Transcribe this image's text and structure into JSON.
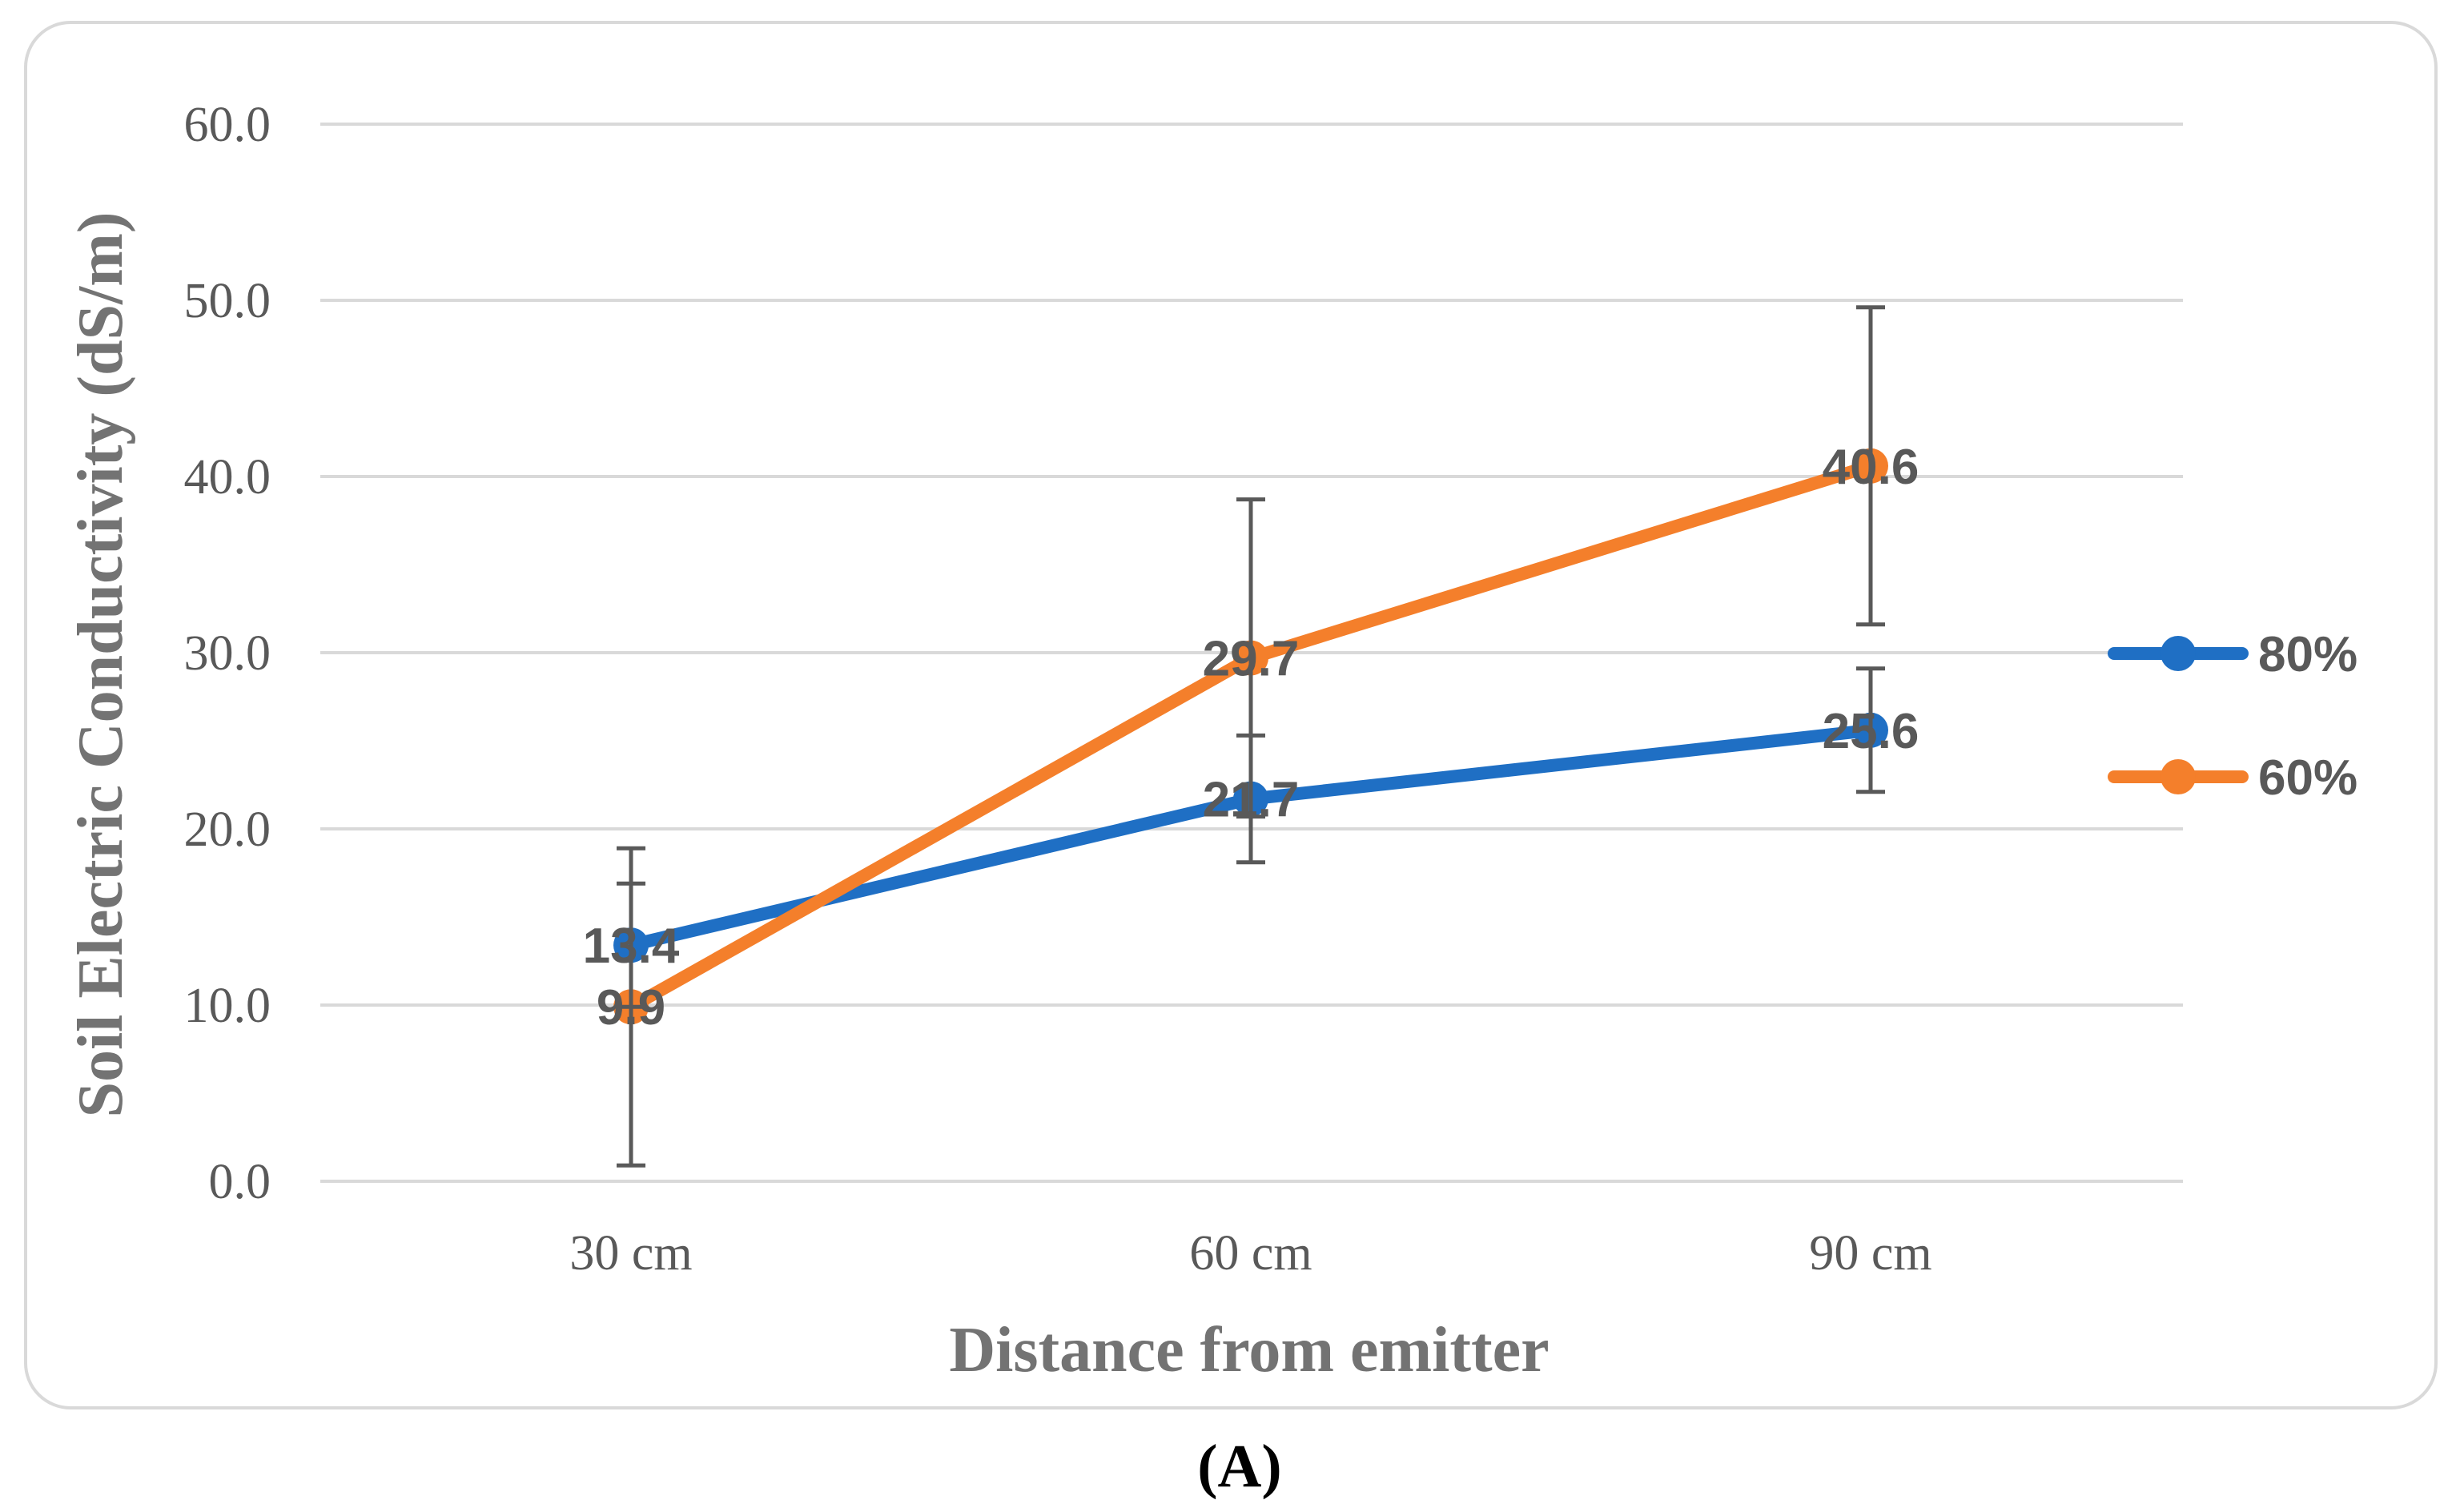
{
  "figure": {
    "panel_label": "(A)"
  },
  "chart_data": {
    "type": "line",
    "title": "",
    "xlabel": "Distance from emitter",
    "ylabel": "Soil Electric Conductivity (dS/m)",
    "categories": [
      "30 cm",
      "60 cm",
      "90 cm"
    ],
    "ylim": [
      0,
      60
    ],
    "yticks": [
      0,
      10,
      20,
      30,
      40,
      50,
      60
    ],
    "ytick_labels": [
      "0.0",
      "10.0",
      "20.0",
      "30.0",
      "40.0",
      "50.0",
      "60.0"
    ],
    "grid": true,
    "legend_position": "right",
    "series": [
      {
        "name": "80%",
        "color": "#1f6fc4",
        "values": [
          13.4,
          21.7,
          25.6
        ],
        "value_labels": [
          "13.4",
          "21.7",
          "25.6"
        ],
        "error_low": [
          9.9,
          18.1,
          22.1
        ],
        "error_high": [
          16.9,
          25.3,
          29.1
        ]
      },
      {
        "name": "60%",
        "color": "#f47f2b",
        "values": [
          9.9,
          29.7,
          40.6
        ],
        "value_labels": [
          "9.9",
          "29.7",
          "40.6"
        ],
        "error_low": [
          0.9,
          20.7,
          31.6
        ],
        "error_high": [
          18.9,
          38.7,
          49.6
        ]
      }
    ]
  }
}
